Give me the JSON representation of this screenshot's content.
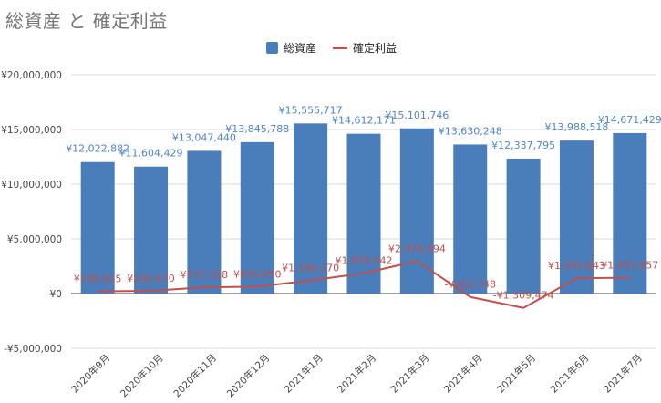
{
  "chart_data": {
    "type": "bar",
    "title": "総資産 と 確定利益",
    "categories": [
      "2020年9月",
      "2020年10月",
      "2020年11月",
      "2020年12月",
      "2021年1月",
      "2021年2月",
      "2021年3月",
      "2021年4月",
      "2021年5月",
      "2021年6月",
      "2021年7月"
    ],
    "series": [
      {
        "name": "総資産",
        "type": "bar",
        "color": "#4a7ebb",
        "label_color": "#4f86c6",
        "values": [
          12022882,
          11604429,
          13047440,
          13845788,
          15555717,
          14612171,
          15101746,
          13630248,
          12337795,
          13988518,
          14671429
        ],
        "labels": [
          "¥12,022,882",
          "¥11,604,429",
          "¥13,047,440",
          "¥13,845,788",
          "¥15,555,717",
          "¥14,612,171",
          "¥15,101,746",
          "¥13,630,248",
          "¥12,337,795",
          "¥13,988,518",
          "¥14,671,429"
        ]
      },
      {
        "name": "確定利益",
        "type": "line",
        "color": "#c0504d",
        "label_color": "#c0504d",
        "values": [
          208615,
          246670,
          571318,
          630850,
          1194170,
          1856042,
          2976094,
          -310748,
          -1309474,
          1395843,
          1453857
        ],
        "labels": [
          "¥208,615",
          "¥246,670",
          "¥571,318",
          "¥630,850",
          "¥1,194,170",
          "¥1,856,042",
          "¥2,976,094",
          "-¥310,748",
          "-¥1,309,474",
          "¥1,395,843",
          "¥1,453,857"
        ]
      }
    ],
    "y_ticks": [
      20000000,
      15000000,
      10000000,
      5000000,
      0,
      -5000000
    ],
    "y_tick_labels": [
      "¥20,000,000",
      "¥15,000,000",
      "¥10,000,000",
      "¥5,000,000",
      "¥0",
      "-¥5,000,000"
    ],
    "ylim": [
      -5000000,
      20000000
    ],
    "grid": true,
    "legend_position": "top-center",
    "grid_color": "#d9d9d9",
    "axis_label_color": "#444444"
  }
}
